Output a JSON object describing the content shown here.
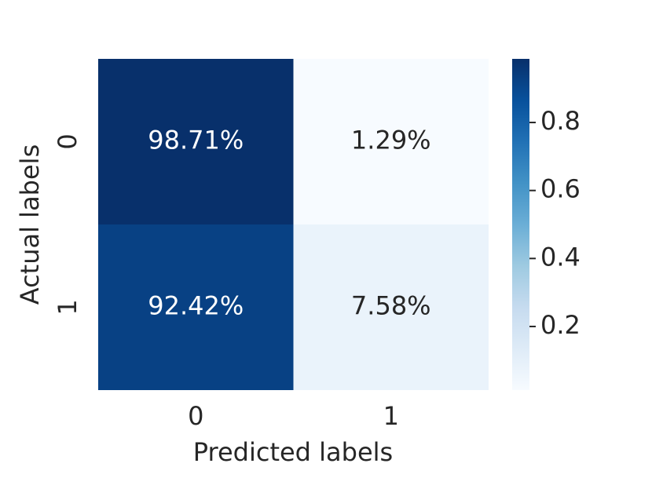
{
  "chart_data": {
    "type": "heatmap",
    "x_label": "Predicted labels",
    "y_label": "Actual labels",
    "x_categories": [
      "0",
      "1"
    ],
    "y_categories": [
      "0",
      "1"
    ],
    "values": [
      [
        0.9871,
        0.0129
      ],
      [
        0.9242,
        0.0758
      ]
    ],
    "value_labels": [
      [
        "98.71%",
        "1.29%"
      ],
      [
        "92.42%",
        "7.58%"
      ]
    ],
    "colormap": [
      "#f7fbff",
      "#deebf7",
      "#c6dbef",
      "#9ecae1",
      "#6baed6",
      "#4292c6",
      "#2171b5",
      "#08519c",
      "#08306b"
    ],
    "clim": [
      0.0129,
      0.9871
    ],
    "cticks": [
      0.2,
      0.4,
      0.6,
      0.8
    ]
  }
}
